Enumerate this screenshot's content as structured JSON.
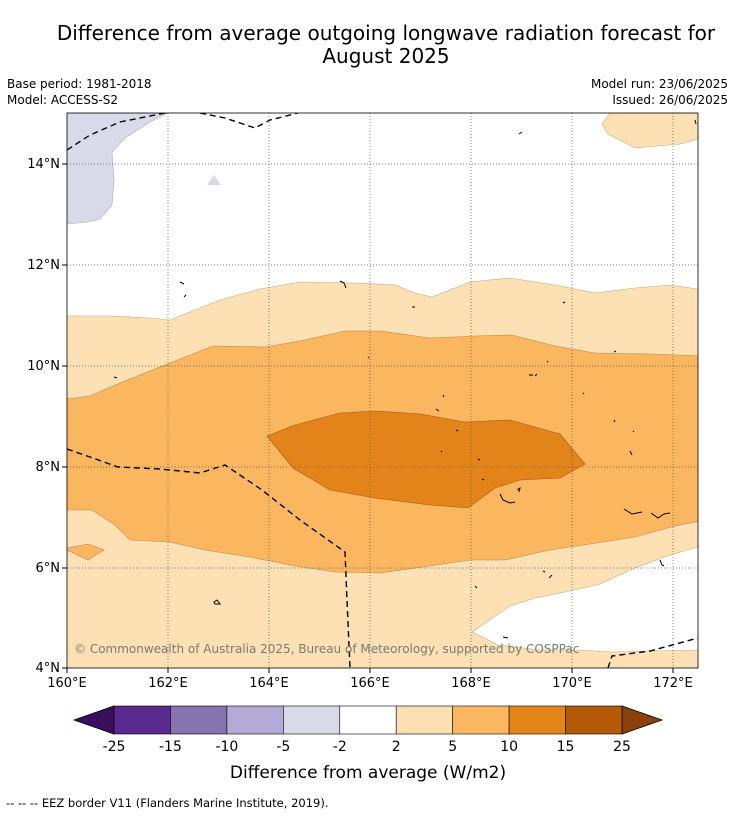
{
  "title": "Difference from average outgoing longwave radiation forecast for August 2025",
  "meta": {
    "base_period": "Base period: 1981-2018",
    "model": "Model: ACCESS-S2",
    "model_run": "Model run: 23/06/2025",
    "issued": "Issued: 26/06/2025"
  },
  "map": {
    "copyright": "© Commonwealth of Australia 2025, Bureau of Meteorology, supported by COSPPac",
    "lon_ticks": [
      "160°E",
      "162°E",
      "164°E",
      "166°E",
      "168°E",
      "170°E",
      "172°E"
    ],
    "lat_ticks": [
      "14°N",
      "12°N",
      "10°N",
      "8°N",
      "6°N",
      "4°N"
    ]
  },
  "colorbar": {
    "title": "Difference from average (W/m2)",
    "labels": [
      "-25",
      "-15",
      "-10",
      "-5",
      "-2",
      "2",
      "5",
      "10",
      "15",
      "25"
    ],
    "colors": [
      "#5b2a8e",
      "#8574b1",
      "#b2a9d4",
      "#d9d9ea",
      "#ffffff",
      "#fde0b3",
      "#fbb660",
      "#e3841b",
      "#b35908"
    ],
    "extend_low_color": "#3b0f5f",
    "extend_high_color": "#8a420a"
  },
  "footer": "--  --  -- EEZ border V11 (Flanders Marine Institute, 2019)."
}
